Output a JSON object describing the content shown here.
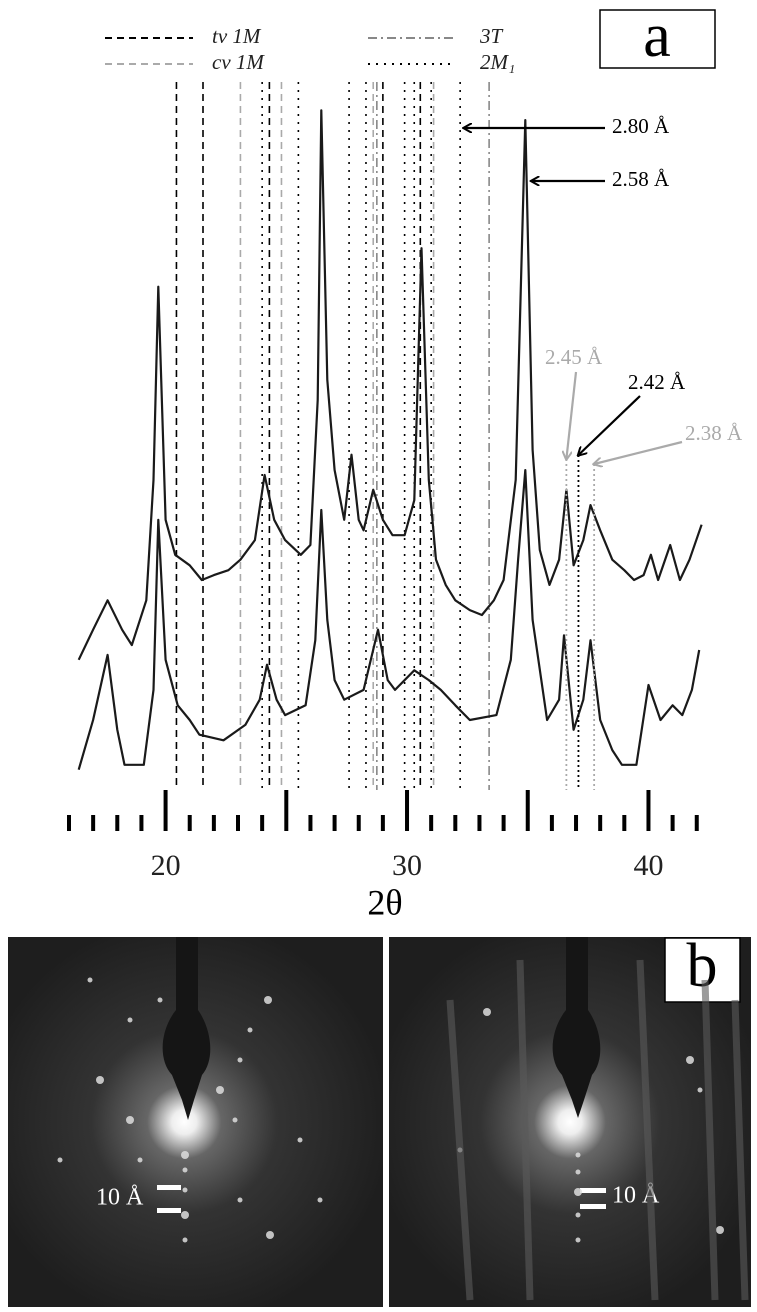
{
  "chart_data": {
    "type": "line",
    "panel_label": "a",
    "xlabel": "2θ",
    "xlim": [
      16,
      42.3
    ],
    "xticks": [
      20,
      30,
      40
    ],
    "xminor": [
      16,
      17,
      18,
      19,
      20,
      21,
      22,
      23,
      24,
      25,
      26,
      27,
      28,
      29,
      30,
      31,
      32,
      33,
      34,
      35,
      36,
      37,
      38,
      39,
      40,
      41,
      42
    ],
    "ylim": [
      0,
      100
    ],
    "series": [
      {
        "color": "#1a1a1a",
        "x": [
          16.4,
          17.0,
          17.6,
          18.2,
          18.6,
          19.2,
          19.5,
          19.7,
          20.0,
          20.4,
          21.0,
          21.5,
          22.0,
          22.6,
          23.1,
          23.7,
          24.1,
          24.5,
          24.95,
          25.6,
          26.0,
          26.3,
          26.45,
          26.7,
          27.0,
          27.4,
          27.7,
          28.0,
          28.2,
          28.6,
          29.0,
          29.4,
          29.9,
          30.3,
          30.6,
          30.9,
          31.2,
          31.6,
          32.0,
          32.6,
          33.1,
          33.6,
          34.0,
          34.5,
          34.9,
          35.2,
          35.5,
          35.9,
          36.3,
          36.6,
          36.9,
          37.3,
          37.6,
          38.0,
          38.5,
          39.0,
          39.4,
          39.8,
          40.1,
          40.4,
          40.9,
          41.3,
          41.7,
          42.2
        ],
        "values": [
          18.6,
          22.9,
          27.1,
          22.9,
          20.7,
          27.1,
          44.3,
          71.9,
          38.6,
          33.6,
          32.1,
          30,
          30.7,
          31.4,
          32.9,
          35.7,
          45,
          38.6,
          35.7,
          33.6,
          35,
          55.7,
          97.1,
          58.6,
          45.7,
          38.6,
          47.9,
          38.6,
          37.1,
          42.9,
          38.6,
          36.4,
          36.4,
          41.4,
          77.4,
          44.3,
          32.9,
          29.3,
          27.1,
          25.7,
          25,
          27.1,
          30,
          44.3,
          95.7,
          48.6,
          34.3,
          29.3,
          32.9,
          42.9,
          32.1,
          35.7,
          40.7,
          37.1,
          32.9,
          31.4,
          30,
          30.7,
          33.6,
          30,
          35,
          30,
          32.9,
          37.9
        ]
      },
      {
        "color": "#1a1a1a",
        "x": [
          16.4,
          17.0,
          17.6,
          18.0,
          18.3,
          19.1,
          19.5,
          19.7,
          20.0,
          20.5,
          21.0,
          21.4,
          22.4,
          23.3,
          23.9,
          24.2,
          24.6,
          24.95,
          25.8,
          26.2,
          26.45,
          26.7,
          27.0,
          27.4,
          28.2,
          28.8,
          29.2,
          29.5,
          30.3,
          30.9,
          31.4,
          32.0,
          32.6,
          33.7,
          34.3,
          34.6,
          34.9,
          35.2,
          35.8,
          36.3,
          36.5,
          36.9,
          37.3,
          37.6,
          38.0,
          38.5,
          38.9,
          39.5,
          40.0,
          40.5,
          41.0,
          41.4,
          41.8,
          42.1
        ],
        "values": [
          2.9,
          10,
          19.3,
          8.6,
          3.6,
          3.6,
          14.3,
          38.6,
          18.6,
          12.1,
          10,
          7.9,
          7.1,
          9.3,
          12.9,
          17.9,
          12.9,
          10.7,
          12.1,
          21.4,
          40,
          24.3,
          15.7,
          12.9,
          14.3,
          22.9,
          15.7,
          14.3,
          17.1,
          15.7,
          14.3,
          12.1,
          10,
          10.7,
          18.6,
          32.9,
          45.7,
          24.3,
          10,
          12.9,
          22.1,
          8.6,
          12.9,
          21.4,
          10,
          5.7,
          3.6,
          3.6,
          15,
          10,
          12.1,
          10.7,
          14.3,
          20
        ]
      }
    ],
    "reference_lines": [
      {
        "name": "tv 1M",
        "color": "#000000",
        "dash": "7,5",
        "x": [
          20.45,
          21.55,
          24.3,
          29.0,
          30.55
        ]
      },
      {
        "name": "cv 1M",
        "color": "#aaaaaa",
        "dash": "7,5",
        "x": [
          23.1,
          24.8,
          28.6,
          31.1
        ]
      },
      {
        "name": "3T",
        "color": "#888888",
        "dash": "9,4,2,4",
        "x": [
          28.75,
          33.4
        ]
      },
      {
        "name": "2M₁",
        "color": "#000000",
        "dash": "2,6",
        "x": [
          24.0,
          25.5,
          27.6,
          28.3,
          29.9,
          30.3,
          31.0,
          32.2
        ]
      }
    ],
    "annotations": [
      {
        "text": "2.80 Å",
        "x": 32.2,
        "color": "#000000"
      },
      {
        "text": "2.58 Å",
        "x": 35.0,
        "color": "#000000"
      },
      {
        "text": "2.45 Å",
        "x": 36.6,
        "color": "#aaaaaa"
      },
      {
        "text": "2.42 Å",
        "x": 37.1,
        "color": "#000000"
      },
      {
        "text": "2.38 Å",
        "x": 37.75,
        "color": "#aaaaaa"
      }
    ]
  },
  "panel_b": {
    "label": "b",
    "scale_labels": [
      "10 Å",
      "10 Å"
    ]
  }
}
